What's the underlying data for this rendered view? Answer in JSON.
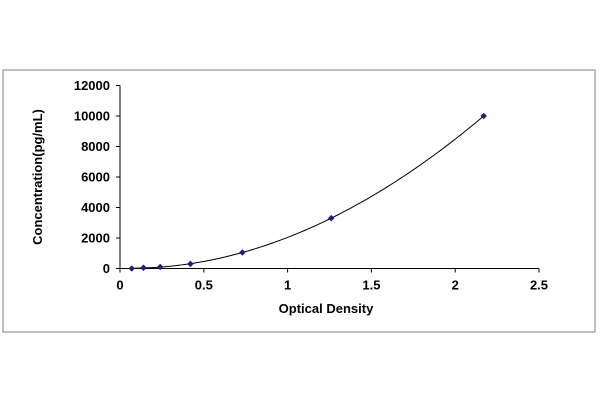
{
  "chart_data": {
    "type": "scatter",
    "title": "",
    "xlabel": "Optical Density",
    "ylabel": "Concentration(pg/mL)",
    "xlim": [
      0,
      2.5
    ],
    "ylim": [
      0,
      12000
    ],
    "xticks": [
      0,
      0.5,
      1,
      1.5,
      2,
      2.5
    ],
    "yticks": [
      0,
      2000,
      4000,
      6000,
      8000,
      10000,
      12000
    ],
    "xtick_labels": [
      "0",
      "0.5",
      "1",
      "1.5",
      "2",
      "2.5"
    ],
    "ytick_labels": [
      "0",
      "2000",
      "4000",
      "6000",
      "8000",
      "10000",
      "12000"
    ],
    "grid": false,
    "legend": "none",
    "series": [
      {
        "x": [
          0.07,
          0.14,
          0.24,
          0.42,
          0.73,
          1.26,
          2.17
        ],
        "y": [
          0,
          50,
          100,
          300,
          1050,
          3300,
          10000
        ],
        "marker": "diamond",
        "trendline": "polynomial"
      }
    ],
    "colors": {
      "marker": "#1f1f7a",
      "line": "#000000",
      "axes": "#000000",
      "frame": "#808080"
    }
  }
}
